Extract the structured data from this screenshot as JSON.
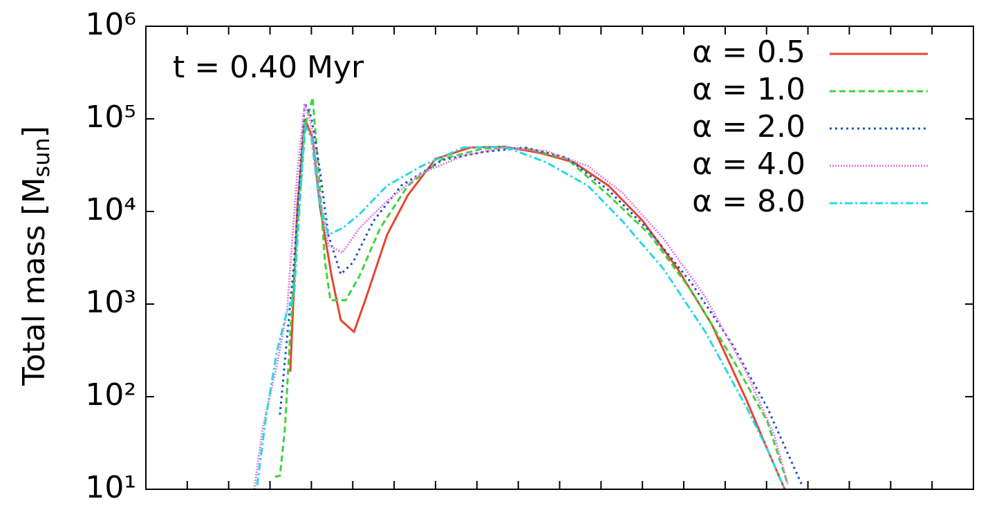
{
  "chart_data": {
    "type": "line",
    "annotation": "t = 0.40 Myr",
    "ylabel": [
      "Total mass [M",
      "sun",
      "]"
    ],
    "ylog": true,
    "legend": "upper right",
    "xlim": [
      0,
      20
    ],
    "xticks": [
      0,
      1,
      2,
      3,
      4,
      5,
      6,
      7,
      8,
      9,
      10,
      11,
      12,
      13,
      14,
      15,
      16,
      17,
      18,
      19,
      20
    ],
    "ylim": [
      10,
      1000000
    ],
    "yticks": [
      {
        "value": 10,
        "label": "10¹"
      },
      {
        "value": 100,
        "label": "10²"
      },
      {
        "value": 1000,
        "label": "10³"
      },
      {
        "value": 10000,
        "label": "10⁴"
      },
      {
        "value": 100000,
        "label": "10⁵"
      },
      {
        "value": 1000000,
        "label": "10⁶"
      }
    ],
    "series": [
      {
        "name": "α = 0.5",
        "color": "#e8442e",
        "dash": "none",
        "x": [
          3.49,
          3.66,
          3.84,
          4.03,
          4.21,
          4.49,
          4.71,
          5.03,
          5.33,
          5.83,
          6.33,
          7.0,
          7.84,
          8.67,
          9.51,
          10.34,
          11.18,
          12.01,
          12.85,
          13.68,
          14.52,
          15.02,
          15.44
        ],
        "values": [
          186,
          11000,
          100000,
          62000,
          11000,
          2000,
          670,
          500,
          1200,
          5600,
          15000,
          37000,
          49000,
          50000,
          43000,
          34000,
          19000,
          7900,
          2400,
          600,
          91,
          27,
          10
        ]
      },
      {
        "name": "α = 1.0",
        "color": "#3fd33b",
        "dash": "9,5",
        "x": [
          3.12,
          3.24,
          3.36,
          3.49,
          3.66,
          3.86,
          4.03,
          4.19,
          4.33,
          4.46,
          4.83,
          5.16,
          5.66,
          6.33,
          7.17,
          8.17,
          9.17,
          10.18,
          11.18,
          12.18,
          13.18,
          14.19,
          15.02,
          15.52
        ],
        "values": [
          13.6,
          14,
          45,
          500,
          6600,
          87000,
          170000,
          22000,
          2800,
          1100,
          1100,
          2000,
          6600,
          19000,
          37000,
          48000,
          48000,
          37000,
          15000,
          5600,
          1400,
          250,
          54,
          11
        ]
      },
      {
        "name": "α = 2.0",
        "color": "#1b52c4",
        "dash": "3,5",
        "x": [
          3.24,
          3.41,
          3.58,
          3.84,
          4.0,
          4.19,
          4.41,
          4.71,
          5.0,
          5.5,
          6.17,
          7.17,
          8.17,
          9.17,
          10.18,
          11.18,
          12.18,
          13.18,
          14.19,
          15.02,
          15.86
        ],
        "values": [
          64,
          424,
          2800,
          150000,
          104000,
          31000,
          5600,
          2100,
          2800,
          7900,
          19000,
          36000,
          44000,
          49000,
          38000,
          17000,
          6100,
          1700,
          357,
          76,
          11
        ]
      },
      {
        "name": "α = 4.0",
        "color": "#e07ae0",
        "dash": "2,2",
        "x": [
          2.62,
          2.82,
          3.16,
          3.41,
          3.66,
          3.84,
          4.0,
          4.19,
          4.41,
          4.75,
          5.16,
          5.83,
          6.67,
          7.67,
          8.67,
          9.67,
          10.68,
          11.51,
          12.51,
          13.52,
          14.52,
          15.19,
          15.52
        ],
        "values": [
          10,
          45,
          213,
          842,
          26000,
          146000,
          87000,
          16000,
          4300,
          3600,
          6600,
          13000,
          26000,
          40000,
          49000,
          45000,
          31000,
          16000,
          5100,
          1200,
          180,
          38,
          11
        ]
      },
      {
        "name": "α = 8.0",
        "color": "#27d8e8",
        "dash": "11,4,3,4",
        "x": [
          2.69,
          2.91,
          3.16,
          3.41,
          3.58,
          3.84,
          4.0,
          4.19,
          4.41,
          4.75,
          5.16,
          5.83,
          6.67,
          7.67,
          8.67,
          9.67,
          10.68,
          11.51,
          12.51,
          13.52,
          14.52,
          15.02,
          15.44
        ],
        "values": [
          11,
          64,
          300,
          842,
          1200,
          87000,
          62000,
          13000,
          5600,
          6600,
          9300,
          19000,
          31000,
          49000,
          50000,
          34000,
          19000,
          7900,
          2400,
          500,
          76,
          27,
          10
        ]
      }
    ]
  }
}
